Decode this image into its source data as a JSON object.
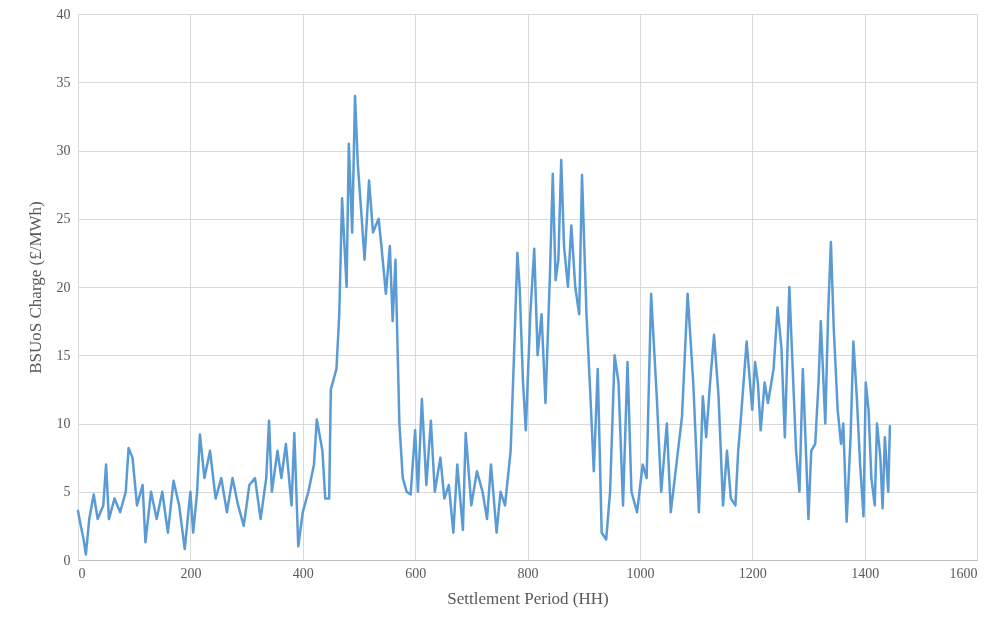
{
  "chart_data": {
    "type": "line",
    "xlabel": "Settlement Period (HH)",
    "ylabel": "BSUoS Charge (£/MWh)",
    "xlim": [
      0,
      1600
    ],
    "xticks": [
      0,
      200,
      400,
      600,
      800,
      1000,
      1200,
      1400,
      1600
    ],
    "ylim": [
      0,
      40
    ],
    "yticks": [
      0,
      5,
      10,
      15,
      20,
      25,
      30,
      35,
      40
    ],
    "grid": true,
    "line_style": "solid",
    "marker": "none",
    "series": [
      {
        "color": "#5b9bd5",
        "x": [
          0,
          5,
          10,
          14,
          20,
          28,
          35,
          45,
          50,
          55,
          65,
          75,
          85,
          90,
          97,
          105,
          115,
          120,
          130,
          140,
          150,
          160,
          170,
          180,
          190,
          200,
          205,
          212,
          217,
          225,
          235,
          245,
          255,
          265,
          275,
          285,
          295,
          305,
          315,
          325,
          335,
          340,
          345,
          355,
          362,
          370,
          380,
          385,
          392,
          400,
          410,
          420,
          425,
          435,
          440,
          447,
          450,
          460,
          465,
          470,
          478,
          482,
          488,
          493,
          498,
          505,
          510,
          518,
          525,
          535,
          540,
          548,
          555,
          560,
          565,
          572,
          578,
          585,
          592,
          600,
          605,
          612,
          620,
          628,
          635,
          645,
          652,
          660,
          668,
          675,
          685,
          690,
          700,
          710,
          720,
          728,
          735,
          745,
          752,
          760,
          770,
          776,
          782,
          786,
          792,
          797,
          805,
          812,
          818,
          825,
          832,
          840,
          845,
          850,
          855,
          860,
          865,
          872,
          878,
          885,
          892,
          897,
          905,
          912,
          918,
          925,
          932,
          940,
          947,
          955,
          962,
          970,
          978,
          985,
          995,
          1005,
          1012,
          1020,
          1030,
          1038,
          1048,
          1055,
          1065,
          1075,
          1085,
          1095,
          1105,
          1112,
          1118,
          1125,
          1132,
          1140,
          1148,
          1155,
          1162,
          1170,
          1175,
          1180,
          1190,
          1200,
          1205,
          1210,
          1215,
          1222,
          1228,
          1238,
          1245,
          1252,
          1258,
          1266,
          1272,
          1278,
          1284,
          1290,
          1296,
          1300,
          1305,
          1312,
          1318,
          1322,
          1330,
          1335,
          1340,
          1345,
          1352,
          1358,
          1362,
          1368,
          1375,
          1380,
          1386,
          1392,
          1398,
          1402,
          1407,
          1412,
          1418,
          1422,
          1428,
          1432,
          1436,
          1442,
          1445
        ],
        "values": [
          3.6,
          2.5,
          1.5,
          0.4,
          3,
          4.8,
          3,
          4,
          7,
          3,
          4.5,
          3.5,
          5,
          8.2,
          7.5,
          4,
          5.5,
          1.3,
          5,
          3,
          5,
          2,
          5.8,
          4,
          0.8,
          5,
          2,
          5,
          9.2,
          6,
          8,
          4.5,
          6,
          3.5,
          6,
          4,
          2.5,
          5.5,
          6,
          3,
          6,
          10.2,
          5,
          8,
          6,
          8.5,
          4,
          9.3,
          1,
          3.5,
          5,
          7,
          10.3,
          8,
          4.5,
          4.5,
          12.5,
          14,
          18,
          26.5,
          20,
          30.5,
          24,
          34,
          29,
          25,
          22,
          27.8,
          24,
          25,
          23,
          19.5,
          23,
          17.5,
          22,
          10,
          6,
          5,
          4.8,
          9.5,
          5,
          11.8,
          5.5,
          10.2,
          5,
          7.5,
          4.5,
          5.5,
          2,
          7,
          2.2,
          9.3,
          4,
          6.5,
          5,
          3,
          7,
          2,
          5,
          4,
          8,
          15,
          22.5,
          20,
          13,
          9.5,
          18,
          22.8,
          15,
          18,
          11.5,
          21,
          28.3,
          20.5,
          22,
          29.3,
          23,
          20,
          24.5,
          20,
          18,
          28.2,
          18,
          12,
          6.5,
          14,
          2,
          1.5,
          5,
          15,
          13,
          4,
          14.5,
          5,
          3.5,
          7,
          6,
          19.5,
          12,
          5,
          10,
          3.5,
          7,
          10.5,
          19.5,
          13,
          3.5,
          12,
          9,
          13,
          16.5,
          12,
          4,
          8,
          4.5,
          4,
          8,
          10.5,
          16,
          11,
          14.5,
          13,
          9.5,
          13,
          11.5,
          14,
          18.5,
          15.5,
          9,
          20,
          14,
          8,
          5,
          14,
          7.5,
          3,
          8,
          8.5,
          13,
          17.5,
          10,
          18,
          23.3,
          17,
          11,
          8.5,
          10,
          2.8,
          9,
          16,
          12,
          7,
          3.2,
          13,
          11,
          6,
          4,
          10,
          7.5,
          3.8,
          9,
          5,
          9.8
        ]
      }
    ]
  }
}
